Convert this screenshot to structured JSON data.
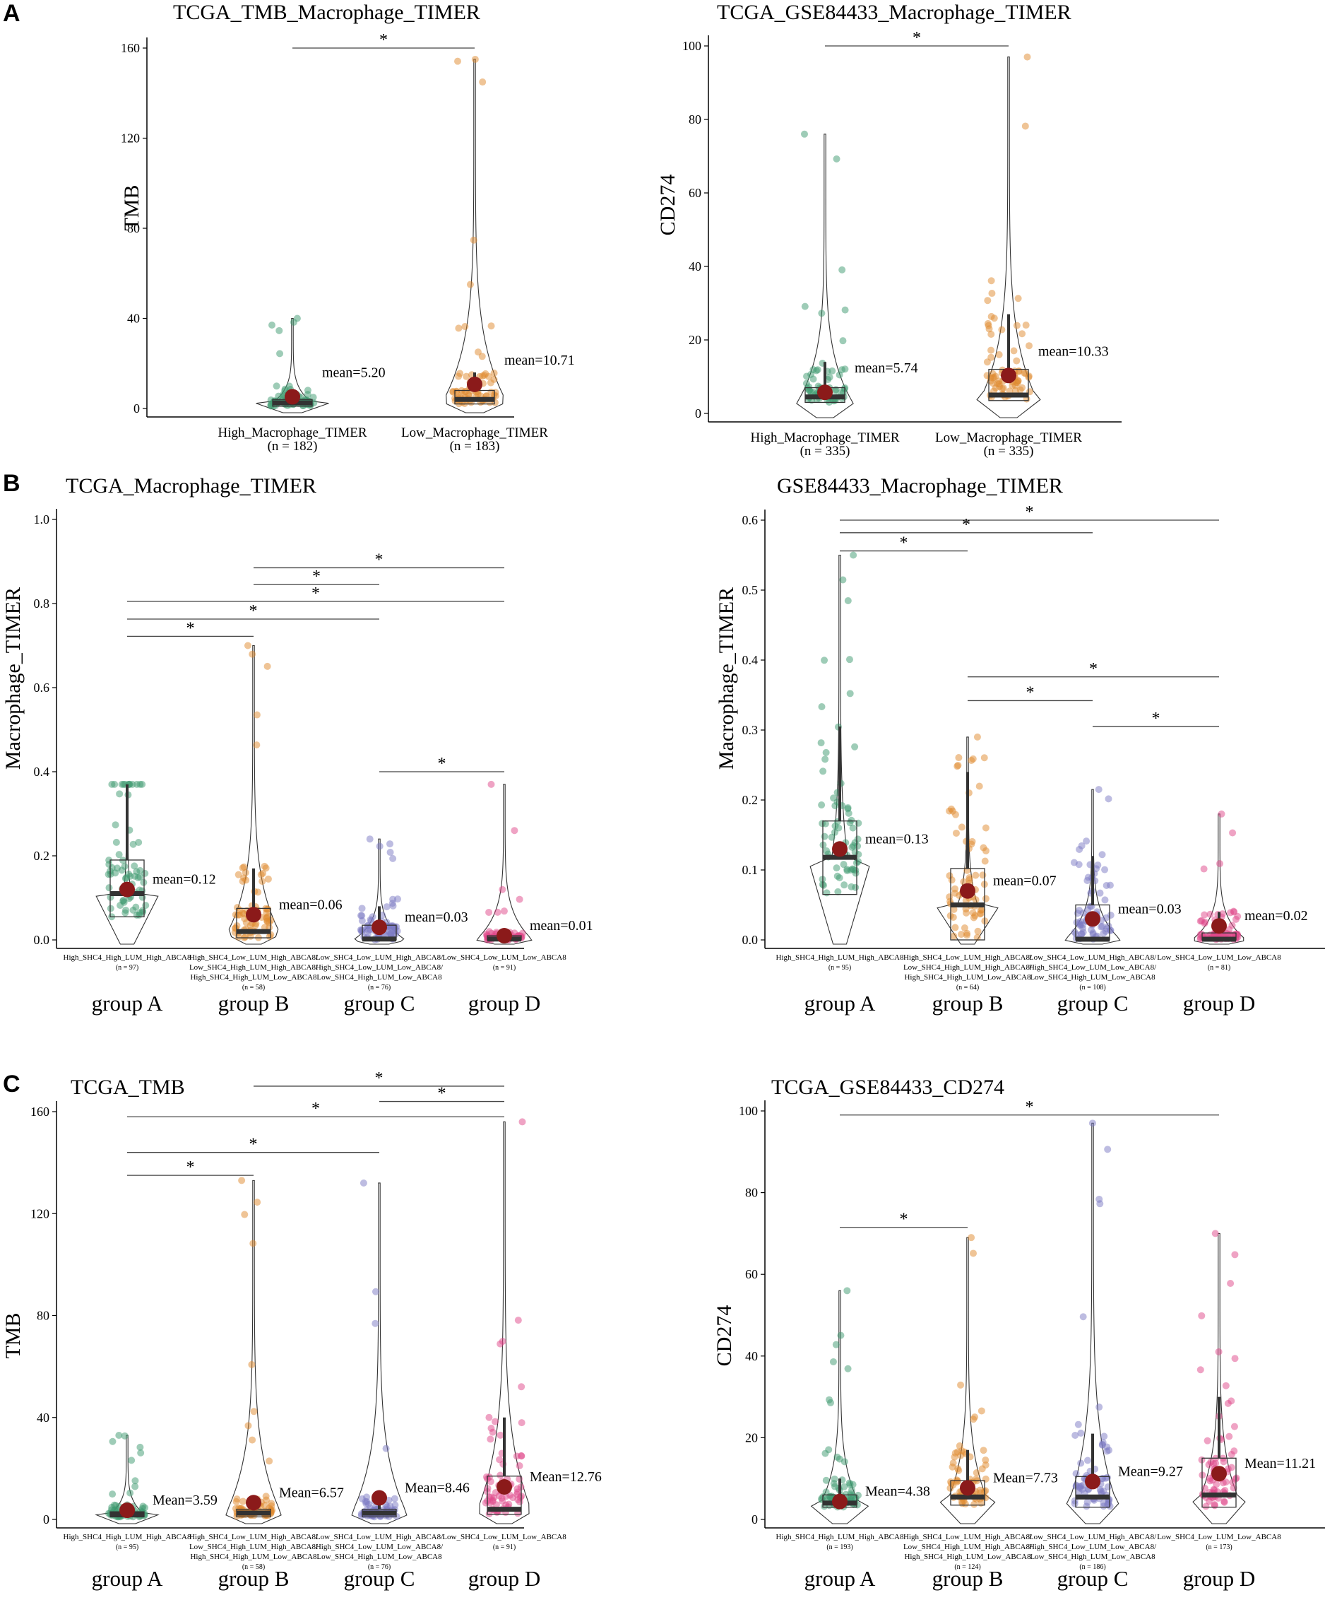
{
  "panel_letters": [
    "A",
    "B",
    "C"
  ],
  "colors": {
    "groupA": "#3d9970",
    "groupB": "#e08a2e",
    "groupC": "#7b79c4",
    "groupD": "#e0478a",
    "mean_point": "#8b1a1a",
    "box_median": "#333333"
  },
  "chart_data": [
    {
      "panel": "A",
      "type": "violin-box-jitter",
      "title": "TCGA_TMB_Macrophage_TIMER",
      "ylabel": "TMB",
      "ylim": [
        0,
        160
      ],
      "yticks": [
        0,
        40,
        80,
        120,
        160
      ],
      "groups": [
        {
          "label": "High_Macrophage_TIMER",
          "n": "(n = 182)",
          "color": "groupA",
          "mean": 5.2,
          "mean_label": "mean=5.20",
          "q1": 1,
          "median": 2.5,
          "q3": 4,
          "wlo": 0,
          "whi": 8,
          "max": 40
        },
        {
          "label": "Low_Macrophage_TIMER",
          "n": "(n = 183)",
          "color": "groupB",
          "mean": 10.71,
          "mean_label": "mean=10.71",
          "q1": 2,
          "median": 4,
          "q3": 8,
          "wlo": 0,
          "whi": 16,
          "max": 155
        }
      ],
      "comparisons": [
        {
          "from": 0,
          "to": 1,
          "y": 160,
          "label": "*"
        }
      ]
    },
    {
      "panel": "",
      "type": "violin-box-jitter",
      "title": "TCGA_GSE84433_Macrophage_TIMER",
      "ylabel": "CD274",
      "ylim": [
        0,
        100
      ],
      "yticks": [
        0,
        20,
        40,
        60,
        80,
        100
      ],
      "groups": [
        {
          "label": "High_Macrophage_TIMER",
          "n": "(n = 335)",
          "color": "groupA",
          "mean": 5.74,
          "mean_label": "mean=5.74",
          "q1": 3,
          "median": 4.5,
          "q3": 7,
          "wlo": 0,
          "whi": 14,
          "max": 76
        },
        {
          "label": "Low_Macrophage_TIMER",
          "n": "(n = 335)",
          "color": "groupB",
          "mean": 10.33,
          "mean_label": "mean=10.33",
          "q1": 3.5,
          "median": 5,
          "q3": 12,
          "wlo": 0,
          "whi": 27,
          "max": 97
        }
      ],
      "comparisons": [
        {
          "from": 0,
          "to": 1,
          "y": 100,
          "label": "*"
        }
      ]
    },
    {
      "panel": "B",
      "type": "violin-box-jitter",
      "title": "TCGA_Macrophage_TIMER",
      "ylabel": "Macrophage_TIMER",
      "ylim": [
        0,
        1.0
      ],
      "yticks": [
        0.0,
        0.2,
        0.4,
        0.6,
        0.8,
        1.0
      ],
      "tick_decimals": 1,
      "groups": [
        {
          "label": "High_SHC4_High_LUM_High_ABCA8",
          "n": "(n = 97)",
          "name": "group A",
          "color": "groupA",
          "mean": 0.12,
          "mean_label": "mean=0.12",
          "q1": 0.055,
          "median": 0.11,
          "q3": 0.19,
          "wlo": 0,
          "whi": 0.37,
          "max": 0.37
        },
        {
          "label": "High_SHC4_Low_LUM_High_ABCA8/\nLow_SHC4_High_LUM_High_ABCA8/\nHigh_SHC4_High_LUM_Low_ABCA8",
          "n": "(n = 58)",
          "name": "group B",
          "color": "groupB",
          "mean": 0.06,
          "mean_label": "mean=0.06",
          "q1": 0.005,
          "median": 0.02,
          "q3": 0.075,
          "wlo": 0,
          "whi": 0.17,
          "max": 0.7
        },
        {
          "label": "Low_SHC4_Low_LUM_High_ABCA8/\nHigh_SHC4_Low_LUM_Low_ABCA8/\nLow_SHC4_High_LUM_Low_ABCA8",
          "n": "(n = 76)",
          "name": "group C",
          "color": "groupC",
          "mean": 0.03,
          "mean_label": "mean=0.03",
          "q1": 0,
          "median": 0.002,
          "q3": 0.035,
          "wlo": 0,
          "whi": 0.08,
          "max": 0.24
        },
        {
          "label": "Low_SHC4_Low_LUM_Low_ABCA8",
          "n": "(n = 91)",
          "name": "group D",
          "color": "groupD",
          "mean": 0.01,
          "mean_label": "mean=0.01",
          "q1": 0,
          "median": 0.002,
          "q3": 0.01,
          "wlo": 0,
          "whi": 0.02,
          "max": 0.37
        }
      ],
      "comparisons": [
        {
          "from": 1,
          "to": 3,
          "y": 0.885,
          "label": "*"
        },
        {
          "from": 1,
          "to": 2,
          "y": 0.845,
          "label": "*"
        },
        {
          "from": 0,
          "to": 3,
          "y": 0.805,
          "label": "*"
        },
        {
          "from": 0,
          "to": 2,
          "y": 0.763,
          "label": "*"
        },
        {
          "from": 0,
          "to": 1,
          "y": 0.722,
          "label": "*"
        },
        {
          "from": 2,
          "to": 3,
          "y": 0.4,
          "label": "*"
        }
      ]
    },
    {
      "panel": "",
      "type": "violin-box-jitter",
      "title": "GSE84433_Macrophage_TIMER",
      "ylabel": "Macrophage_TIMER",
      "ylim": [
        0,
        0.6
      ],
      "yticks": [
        0.0,
        0.1,
        0.2,
        0.3,
        0.4,
        0.5,
        0.6
      ],
      "tick_decimals": 1,
      "groups": [
        {
          "label": "High_SHC4_High_LUM_High_ABCA8",
          "n": "(n = 95)",
          "name": "group A",
          "color": "groupA",
          "mean": 0.13,
          "mean_label": "mean=0.13",
          "q1": 0.065,
          "median": 0.118,
          "q3": 0.17,
          "wlo": 0,
          "whi": 0.305,
          "max": 0.55
        },
        {
          "label": "High_SHC4_Low_LUM_High_ABCA8/\nLow_SHC4_High_LUM_High_ABCA8/\nHigh_SHC4_High_LUM_Low_ABCA8",
          "n": "(n = 64)",
          "name": "group B",
          "color": "groupB",
          "mean": 0.07,
          "mean_label": "mean=0.07",
          "q1": 0,
          "median": 0.05,
          "q3": 0.102,
          "wlo": 0,
          "whi": 0.24,
          "max": 0.29
        },
        {
          "label": "Low_SHC4_Low_LUM_High_ABCA8/\nHigh_SHC4_Low_LUM_Low_ABCA8/\nLow_SHC4_High_LUM_Low_ABCA8",
          "n": "(n = 108)",
          "name": "group C",
          "color": "groupC",
          "mean": 0.03,
          "mean_label": "mean=0.03",
          "q1": 0,
          "median": 0.001,
          "q3": 0.05,
          "wlo": 0,
          "whi": 0.12,
          "max": 0.215
        },
        {
          "label": "Low_SHC4_Low_LUM_Low_ABCA8",
          "n": "(n = 81)",
          "name": "group D",
          "color": "groupD",
          "mean": 0.02,
          "mean_label": "mean=0.02",
          "q1": 0,
          "median": 0.001,
          "q3": 0.01,
          "wlo": 0,
          "whi": 0.04,
          "max": 0.18
        }
      ],
      "comparisons": [
        {
          "from": 0,
          "to": 3,
          "y": 0.6,
          "label": "*"
        },
        {
          "from": 0,
          "to": 2,
          "y": 0.582,
          "label": "*"
        },
        {
          "from": 0,
          "to": 1,
          "y": 0.556,
          "label": "*"
        },
        {
          "from": 1,
          "to": 3,
          "y": 0.376,
          "label": "*"
        },
        {
          "from": 1,
          "to": 2,
          "y": 0.342,
          "label": "*"
        },
        {
          "from": 2,
          "to": 3,
          "y": 0.305,
          "label": "*"
        }
      ]
    },
    {
      "panel": "C",
      "type": "violin-box-jitter",
      "title": "TCGA_TMB",
      "ylabel": "TMB",
      "ylim": [
        0,
        160
      ],
      "yticks": [
        0,
        40,
        80,
        120,
        160
      ],
      "groups": [
        {
          "label": "High_SHC4_High_LUM_High_ABCA8",
          "n": "(n = 95)",
          "name": "group A",
          "color": "groupA",
          "mean": 3.59,
          "mean_label": "Mean=3.59",
          "q1": 1,
          "median": 2,
          "q3": 3,
          "wlo": 0,
          "whi": 6,
          "max": 33
        },
        {
          "label": "High_SHC4_Low_LUM_High_ABCA8/\nLow_SHC4_High_LUM_High_ABCA8/\nHigh_SHC4_High_LUM_Low_ABCA8",
          "n": "(n = 58)",
          "name": "group B",
          "color": "groupB",
          "mean": 6.57,
          "mean_label": "Mean=6.57",
          "q1": 1,
          "median": 2.5,
          "q3": 4,
          "wlo": 0,
          "whi": 8,
          "max": 133
        },
        {
          "label": "Low_SHC4_Low_LUM_High_ABCA8/\nHigh_SHC4_Low_LUM_Low_ABCA8/\nLow_SHC4_High_LUM_Low_ABCA8",
          "n": "(n = 76)",
          "name": "group C",
          "color": "groupC",
          "mean": 8.46,
          "mean_label": "Mean=8.46",
          "q1": 1,
          "median": 2.5,
          "q3": 4,
          "wlo": 0,
          "whi": 9,
          "max": 132
        },
        {
          "label": "Low_SHC4_Low_LUM_Low_ABCA8",
          "n": "(n = 91)",
          "name": "group D",
          "color": "groupD",
          "mean": 12.76,
          "mean_label": "Mean=12.76",
          "q1": 2,
          "median": 4,
          "q3": 17,
          "wlo": 0,
          "whi": 40,
          "max": 156
        }
      ],
      "comparisons": [
        {
          "from": 1,
          "to": 3,
          "y": 170,
          "label": "*"
        },
        {
          "from": 2,
          "to": 3,
          "y": 164,
          "label": "*"
        },
        {
          "from": 0,
          "to": 3,
          "y": 158,
          "label": "*"
        },
        {
          "from": 0,
          "to": 2,
          "y": 144,
          "label": "*"
        },
        {
          "from": 0,
          "to": 1,
          "y": 135,
          "label": "*"
        }
      ]
    },
    {
      "panel": "",
      "type": "violin-box-jitter",
      "title": "TCGA_GSE84433_CD274",
      "ylabel": "CD274",
      "ylim": [
        0,
        100
      ],
      "yticks": [
        0,
        20,
        40,
        60,
        80,
        100
      ],
      "groups": [
        {
          "label": "High_SHC4_High_LUM_High_ABCA8",
          "n": "(n = 193)",
          "name": "group A",
          "color": "groupA",
          "mean": 4.38,
          "mean_label": "Mean=4.38",
          "q1": 3,
          "median": 4,
          "q3": 6,
          "wlo": 0,
          "whi": 10,
          "max": 56
        },
        {
          "label": "High_SHC4_Low_LUM_High_ABCA8/\nLow_SHC4_High_LUM_High_ABCA8/\nHigh_SHC4_High_LUM_Low_ABCA8",
          "n": "(n = 124)",
          "name": "group B",
          "color": "groupB",
          "mean": 7.73,
          "mean_label": "Mean=7.73",
          "q1": 3.5,
          "median": 5.5,
          "q3": 9.5,
          "wlo": 0,
          "whi": 17,
          "max": 69
        },
        {
          "label": "Low_SHC4_Low_LUM_High_ABCA8/\nHigh_SHC4_Low_LUM_Low_ABCA8/\nLow_SHC4_High_LUM_Low_ABCA8",
          "n": "(n = 186)",
          "name": "group C",
          "color": "groupC",
          "mean": 9.27,
          "mean_label": "Mean=9.27",
          "q1": 3,
          "median": 5.5,
          "q3": 10.5,
          "wlo": 0,
          "whi": 21,
          "max": 97
        },
        {
          "label": "Low_SHC4_Low_LUM_Low_ABCA8",
          "n": "(n = 173)",
          "name": "group D",
          "color": "groupD",
          "mean": 11.21,
          "mean_label": "Mean=11.21",
          "q1": 3,
          "median": 6,
          "q3": 15,
          "wlo": 0,
          "whi": 30,
          "max": 70
        }
      ],
      "comparisons": [
        {
          "from": 0,
          "to": 3,
          "y": 99,
          "label": "*"
        },
        {
          "from": 0,
          "to": 1,
          "y": 71.5,
          "label": "*"
        }
      ]
    }
  ]
}
